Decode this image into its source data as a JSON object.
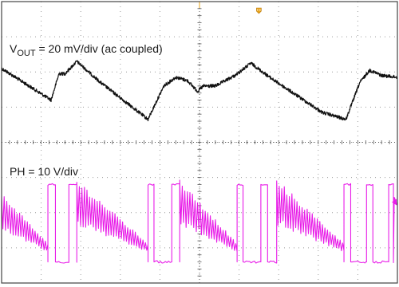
{
  "colors": {
    "background": "#ffffff",
    "frame": "#444444",
    "grid_dot": "#9a9a9a",
    "center_axis": "#555555",
    "vout_trace": "#111111",
    "ph_trace": "#e81ce8",
    "trigger_marker": "#e8a317"
  },
  "labels": {
    "vout_prefix": "V",
    "vout_sub": "OUT",
    "vout_rest": " = 20 mV/div (ac coupled)",
    "ph": "PH = 10 V/div"
  },
  "chart_data": {
    "type": "line",
    "grid": {
      "x_divisions": 10,
      "y_divisions": 8,
      "style": "dotted"
    },
    "markers": [
      "trigger-position",
      "trigger-level"
    ],
    "series": [
      {
        "name": "VOUT",
        "scale": "20 mV/div (ac coupled)",
        "x_div": [
          0.0,
          1.25,
          1.45,
          1.6,
          1.9,
          2.2,
          2.5,
          2.9,
          3.3,
          3.7,
          3.95,
          4.1,
          4.4,
          4.7,
          4.95,
          5.1,
          5.4,
          5.9,
          6.3,
          6.65,
          6.9,
          7.3,
          7.7,
          8.1,
          8.7,
          8.9,
          9.05,
          9.3,
          9.6,
          10.0
        ],
        "y_div": [
          2.1,
          1.2,
          1.95,
          1.95,
          2.3,
          2.0,
          1.7,
          1.35,
          1.0,
          0.65,
          1.25,
          1.6,
          1.85,
          1.75,
          1.45,
          1.6,
          1.6,
          1.9,
          2.25,
          1.95,
          1.75,
          1.45,
          1.15,
          0.85,
          0.65,
          1.25,
          1.7,
          2.05,
          1.9,
          1.85
        ]
      },
      {
        "name": "PH",
        "scale": "10 V/div",
        "low_level_div": -3.4,
        "high_level_div": -1.2,
        "pulse_trains": [
          {
            "start_div": 1.17,
            "end_div": 1.9,
            "pulses_div": [
              [
                1.17,
                1.36
              ],
              [
                1.7,
                1.9
              ]
            ]
          },
          {
            "start_div": 3.7,
            "end_div": 4.5,
            "pulses_div": [
              [
                3.7,
                3.85
              ],
              [
                4.3,
                4.5
              ]
            ]
          },
          {
            "start_div": 5.95,
            "end_div": 6.95,
            "pulses_div": [
              [
                5.95,
                6.1
              ],
              [
                6.55,
                6.72
              ]
            ]
          },
          {
            "start_div": 8.65,
            "end_div": 9.9,
            "pulses_div": [
              [
                8.65,
                8.82
              ],
              [
                9.22,
                9.38
              ],
              [
                9.78,
                9.9
              ]
            ]
          }
        ],
        "ringing_segments_div": [
          [
            0.0,
            1.17
          ],
          [
            1.9,
            3.7
          ],
          [
            4.5,
            5.95
          ],
          [
            6.95,
            8.65
          ]
        ],
        "ringing_start_level_div": -1.7,
        "ringing_end_level_div": -3.0,
        "ringing_amplitude_div": [
          0.55,
          0.1
        ]
      }
    ]
  }
}
